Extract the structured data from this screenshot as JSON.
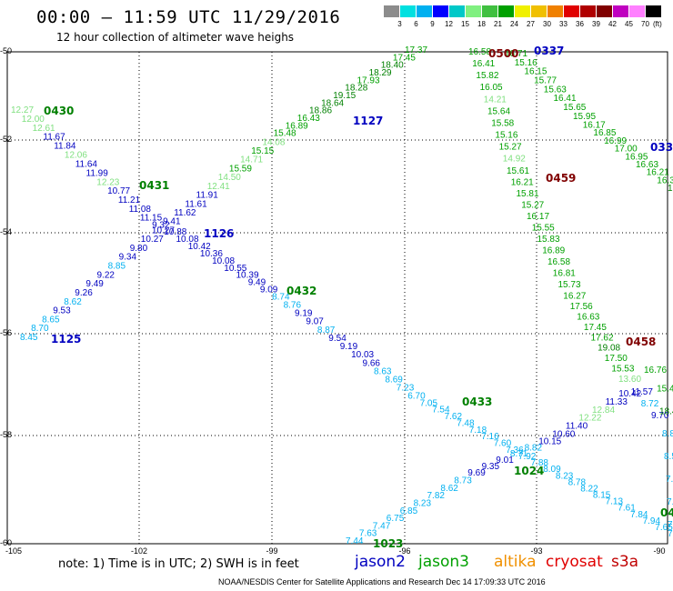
{
  "title": "00:00 – 11:59 UTC 11/29/2016",
  "subtitle": "12 hour collection of altimeter wave heighs",
  "scale": {
    "colors": [
      "#8c8c8c",
      "#00e0e0",
      "#00b0f0",
      "#0000ff",
      "#00c8c8",
      "#80f080",
      "#40c040",
      "#00a000",
      "#f0f000",
      "#f0c000",
      "#f08000",
      "#e00000",
      "#b00000",
      "#800000",
      "#c000c0",
      "#ff80ff",
      "#000000"
    ],
    "labels": [
      "3",
      "6",
      "9",
      "12",
      "15",
      "18",
      "21",
      "24",
      "27",
      "30",
      "33",
      "36",
      "39",
      "42",
      "45",
      "70"
    ],
    "unit": "(ft)"
  },
  "axes": {
    "lat_labels": [
      "-50",
      "-52",
      "-54",
      "-56",
      "-58",
      "-60"
    ],
    "lon_labels": [
      "-105",
      "-102",
      "-99",
      "-96",
      "-93",
      "-90"
    ]
  },
  "passes": [
    {
      "time": "0430",
      "color": "#008000"
    },
    {
      "time": "0431",
      "color": "#008000"
    },
    {
      "time": "0432",
      "color": "#008000"
    },
    {
      "time": "0433",
      "color": "#008000"
    },
    {
      "time": "1125",
      "color": "#0000c0"
    },
    {
      "time": "1126",
      "color": "#0000c0"
    },
    {
      "time": "1127",
      "color": "#0000c0"
    },
    {
      "time": "1023",
      "color": "#008000"
    },
    {
      "time": "1024",
      "color": "#008000"
    },
    {
      "time": "0500",
      "color": "#800000"
    },
    {
      "time": "0459",
      "color": "#800000"
    },
    {
      "time": "0458",
      "color": "#800000"
    },
    {
      "time": "0337",
      "color": "#0000c0"
    },
    {
      "time": "033",
      "color": "#0000c0"
    },
    {
      "time": "04",
      "color": "#008000"
    }
  ],
  "tracks": [
    {
      "name": "track-0430-0433",
      "color": "#0000c0",
      "values": [
        "12.27",
        "12.00",
        "12.61",
        "11.67",
        "11.84",
        "12.06",
        "11.64",
        "11.99",
        "12.23",
        "10.77",
        "11.21",
        "11.08",
        "11.15",
        "9.32",
        "10.88",
        "10.08",
        "10.42",
        "10.36",
        "10.08",
        "10.55",
        "10.39",
        "9.49",
        "9.09",
        "8.74",
        "8.76",
        "9.19",
        "9.07",
        "8.87",
        "9.54",
        "9.19",
        "10.03",
        "9.66",
        "8.63",
        "8.69",
        "7.23",
        "6.70",
        "7.05",
        "7.54",
        "7.62",
        "7.48",
        "7.18",
        "7.16",
        "7.60",
        "7.36",
        "7.92",
        "7.88",
        "8.09",
        "8.23",
        "8.78",
        "8.22",
        "8.15",
        "7.13",
        "7.61",
        "7.84",
        "7.94",
        "7.65",
        "7.4"
      ]
    },
    {
      "name": "track-1125-1127",
      "color": "#0000c0",
      "values": [
        "8.45",
        "8.70",
        "8.65",
        "9.53",
        "8.62",
        "9.26",
        "9.49",
        "9.22",
        "8.85",
        "9.34",
        "9.80",
        "10.27",
        "10.27",
        "9.41",
        "11.62",
        "11.61",
        "11.91",
        "12.41",
        "14.50",
        "15.59",
        "14.71",
        "15.15",
        "14.08",
        "15.48",
        "16.89",
        "16.43",
        "18.86",
        "18.64",
        "19.15",
        "18.28",
        "17.93",
        "18.29",
        "18.40",
        "17.45",
        "17.37"
      ]
    },
    {
      "name": "track-1023-1024",
      "color": "#00b0f0",
      "values": [
        "7.44",
        "7.63",
        "7.47",
        "6.75",
        "6.85",
        "8.23",
        "7.82",
        "8.62",
        "8.73",
        "9.69",
        "9.35",
        "9.01",
        "8.71",
        "8.82",
        "10.15",
        "10.60",
        "11.40",
        "12.22",
        "12.84",
        "11.33",
        "10.42",
        "11.57",
        "8.72",
        "9.70"
      ]
    },
    {
      "name": "track-0500-0458",
      "color": "#008000",
      "values": [
        "16.58",
        "16.41",
        "15.82",
        "16.05",
        "14.21",
        "15.64",
        "15.58",
        "15.16",
        "15.27",
        "14.92",
        "15.61",
        "16.21",
        "15.81",
        "15.27",
        "16.17",
        "15.55",
        "15.83",
        "16.89",
        "16.58",
        "16.81",
        "15.73",
        "16.27",
        "17.56",
        "16.63",
        "17.45",
        "17.62",
        "19.08",
        "17.50",
        "15.53",
        "13.60"
      ]
    },
    {
      "name": "track-0337",
      "color": "#008000",
      "values": [
        "16.71",
        "15.16",
        "16.15",
        "15.77",
        "15.63",
        "16.41",
        "15.65",
        "15.95",
        "16.17",
        "16.85",
        "16.99",
        "17.00",
        "16.95",
        "16.63",
        "16.21",
        "16.31",
        "18"
      ]
    },
    {
      "name": "track-east-edge",
      "color": "#008000",
      "values": [
        "16.76",
        "15.46",
        "18.4",
        "8.81",
        "8.55",
        "7.90",
        "7.0",
        "7.66"
      ]
    }
  ],
  "note": "note: 1) Time is in UTC; 2) SWH is in feet",
  "satellites": [
    {
      "name": "jason2",
      "color": "#0000c0"
    },
    {
      "name": "jason3",
      "color": "#00a000"
    },
    {
      "name": "altika",
      "color": "#f09000"
    },
    {
      "name": "cryosat",
      "color": "#e00000"
    },
    {
      "name": "s3a",
      "color": "#c00000"
    }
  ],
  "credit": "NOAA/NESDIS Center for Satellite Applications and Research    Dec 14 17:09:33 UTC 2016"
}
